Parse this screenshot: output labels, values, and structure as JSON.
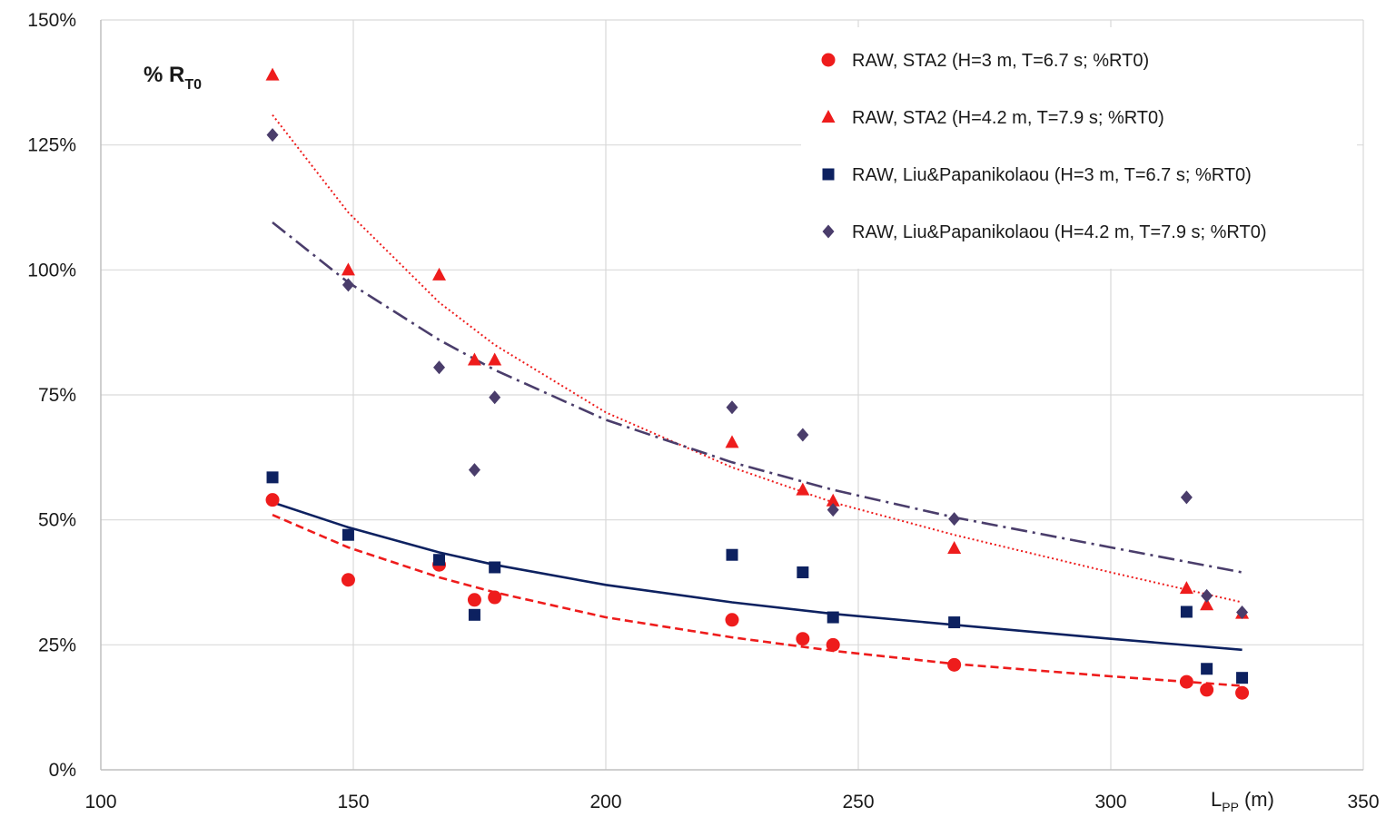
{
  "chart_data": {
    "type": "scatter",
    "title": "",
    "ylabel": {
      "main": "% R",
      "sub": "T0"
    },
    "xlabel": {
      "main": "L",
      "sub": "PP",
      "unit": "(m)"
    },
    "xlim": [
      100,
      350
    ],
    "ylim": [
      0,
      1.5
    ],
    "x_ticks": [
      100,
      150,
      200,
      250,
      300,
      350
    ],
    "x_tick_labels": [
      "100",
      "150",
      "200",
      "250",
      "300",
      "350"
    ],
    "y_ticks": [
      0,
      0.25,
      0.5,
      0.75,
      1.0,
      1.25,
      1.5
    ],
    "y_tick_labels": [
      "0%",
      "25%",
      "50%",
      "75%",
      "100%",
      "125%",
      "150%"
    ],
    "grid": true,
    "legend_position": "top-right",
    "series": [
      {
        "name": "RAW, STA2 (H=3 m, T=6.7 s; %RT0)",
        "marker": "circle",
        "color": "#ee1c1c",
        "points": [
          [
            134,
            0.54
          ],
          [
            149,
            0.38
          ],
          [
            167,
            0.41
          ],
          [
            174,
            0.34
          ],
          [
            178,
            0.345
          ],
          [
            225,
            0.3
          ],
          [
            239,
            0.262
          ],
          [
            245,
            0.25
          ],
          [
            269,
            0.21
          ],
          [
            315,
            0.176
          ],
          [
            319,
            0.16
          ],
          [
            326,
            0.154
          ]
        ],
        "trend": {
          "style": "dashed",
          "x": [
            134,
            149,
            167,
            178,
            200,
            225,
            245,
            269,
            300,
            326
          ],
          "y": [
            0.51,
            0.445,
            0.385,
            0.355,
            0.305,
            0.265,
            0.238,
            0.212,
            0.187,
            0.168
          ]
        }
      },
      {
        "name": "RAW, STA2 (H=4.2 m, T=7.9 s; %RT0)",
        "marker": "triangle",
        "color": "#ee1c1c",
        "points": [
          [
            134,
            1.39
          ],
          [
            149,
            1.0
          ],
          [
            167,
            0.99
          ],
          [
            174,
            0.82
          ],
          [
            178,
            0.82
          ],
          [
            225,
            0.655
          ],
          [
            239,
            0.56
          ],
          [
            245,
            0.538
          ],
          [
            269,
            0.443
          ],
          [
            315,
            0.363
          ],
          [
            319,
            0.33
          ],
          [
            326,
            0.313
          ]
        ],
        "trend": {
          "style": "dotted",
          "x": [
            134,
            149,
            167,
            178,
            200,
            225,
            245,
            269,
            300,
            326
          ],
          "y": [
            1.31,
            1.115,
            0.935,
            0.85,
            0.715,
            0.605,
            0.535,
            0.47,
            0.395,
            0.335
          ]
        }
      },
      {
        "name": "RAW, Liu&Papanikolaou (H=3 m, T=6.7 s; %RT0)",
        "marker": "square",
        "color": "#0d2160",
        "points": [
          [
            134,
            0.585
          ],
          [
            149,
            0.47
          ],
          [
            167,
            0.42
          ],
          [
            174,
            0.31
          ],
          [
            178,
            0.405
          ],
          [
            225,
            0.43
          ],
          [
            239,
            0.395
          ],
          [
            245,
            0.305
          ],
          [
            269,
            0.295
          ],
          [
            315,
            0.316
          ],
          [
            319,
            0.202
          ],
          [
            326,
            0.184
          ]
        ],
        "trend": {
          "style": "solid",
          "x": [
            134,
            149,
            167,
            178,
            200,
            225,
            245,
            269,
            300,
            326
          ],
          "y": [
            0.535,
            0.485,
            0.435,
            0.41,
            0.37,
            0.335,
            0.312,
            0.29,
            0.262,
            0.24
          ]
        }
      },
      {
        "name": "RAW, Liu&Papanikolaou (H=4.2 m, T=7.9 s; %RT0)",
        "marker": "diamond",
        "color": "#4a3d6b",
        "points": [
          [
            134,
            1.27
          ],
          [
            149,
            0.97
          ],
          [
            167,
            0.805
          ],
          [
            174,
            0.6
          ],
          [
            178,
            0.745
          ],
          [
            225,
            0.725
          ],
          [
            239,
            0.67
          ],
          [
            245,
            0.52
          ],
          [
            269,
            0.502
          ],
          [
            315,
            0.545
          ],
          [
            319,
            0.348
          ],
          [
            326,
            0.315
          ]
        ],
        "trend": {
          "style": "dashdot",
          "x": [
            134,
            149,
            167,
            178,
            200,
            225,
            245,
            269,
            300,
            326
          ],
          "y": [
            1.095,
            0.975,
            0.86,
            0.8,
            0.7,
            0.615,
            0.56,
            0.505,
            0.445,
            0.395
          ]
        }
      }
    ]
  }
}
